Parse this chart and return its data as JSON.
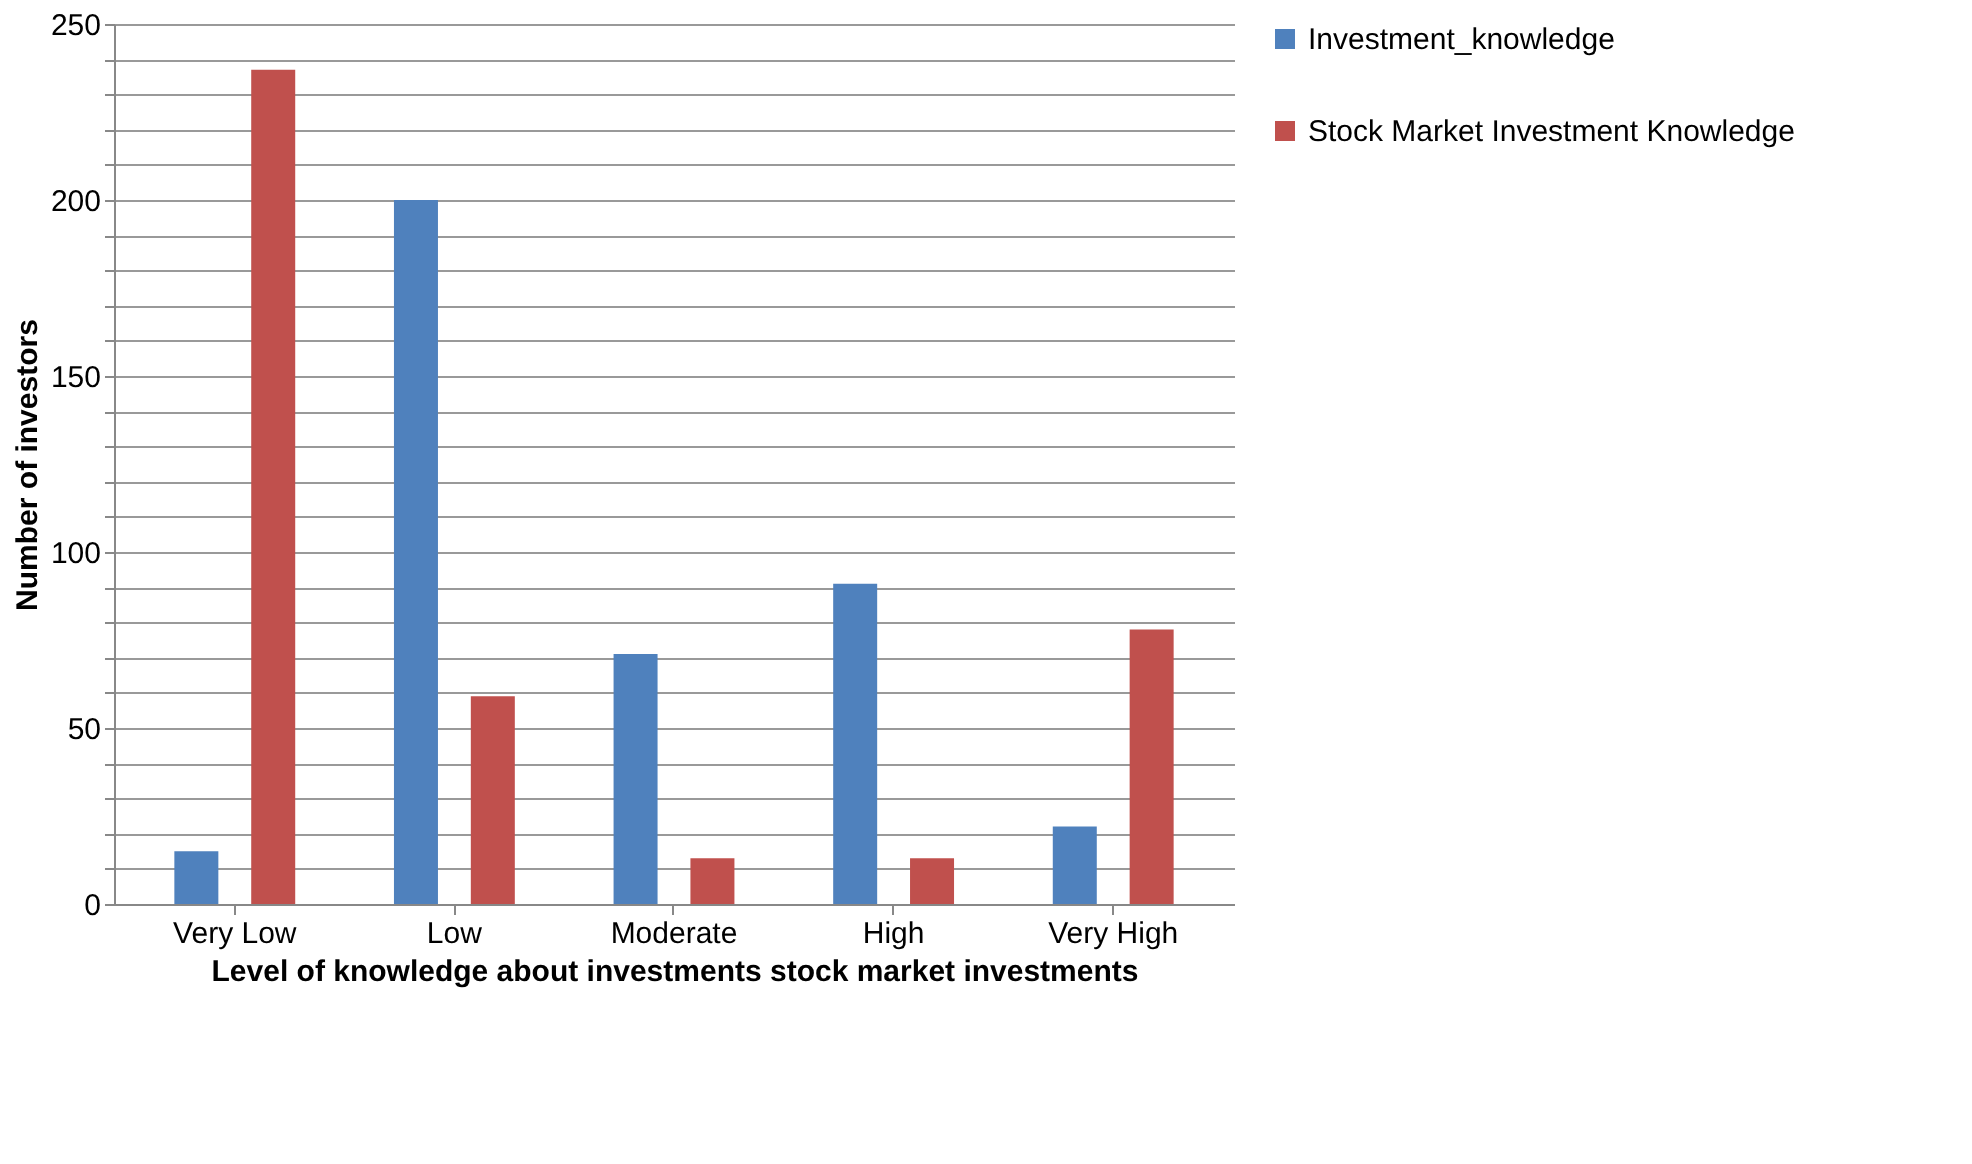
{
  "chart_data": {
    "type": "bar",
    "xlabel": "Level of knowledge about investments stock market investments",
    "ylabel": "Number of investors",
    "categories": [
      "Very Low",
      "Low",
      "Moderate",
      "High",
      "Very High"
    ],
    "series": [
      {
        "name": "Investment_knowledge",
        "color": "#4f81bd",
        "values": [
          15,
          200,
          71,
          91,
          22
        ]
      },
      {
        "name": "Stock Market Investment Knowledge",
        "color": "#c0504d",
        "values": [
          237,
          59,
          13,
          13,
          78
        ]
      }
    ],
    "ylim": [
      0,
      250
    ],
    "yticks": [
      0,
      {
        "value": 10,
        "label": null
      },
      {
        "value": 20,
        "label": null
      },
      {
        "value": 30,
        "label": null
      },
      {
        "value": 40,
        "label": null
      },
      50,
      {
        "value": 60,
        "label": null
      },
      {
        "value": 70,
        "label": null
      },
      {
        "value": 80,
        "label": null
      },
      {
        "value": 90,
        "label": null
      },
      100,
      {
        "value": 110,
        "label": null
      },
      {
        "value": 120,
        "label": null
      },
      {
        "value": 130,
        "label": null
      },
      {
        "value": 140,
        "label": null
      },
      150,
      {
        "value": 160,
        "label": null
      },
      {
        "value": 170,
        "label": null
      },
      {
        "value": 180,
        "label": null
      },
      {
        "value": 190,
        "label": null
      },
      200,
      {
        "value": 210,
        "label": null
      },
      {
        "value": 220,
        "label": null
      },
      {
        "value": 230,
        "label": null
      },
      {
        "value": 240,
        "label": null
      },
      250
    ],
    "grid": "y",
    "legend": "right"
  }
}
